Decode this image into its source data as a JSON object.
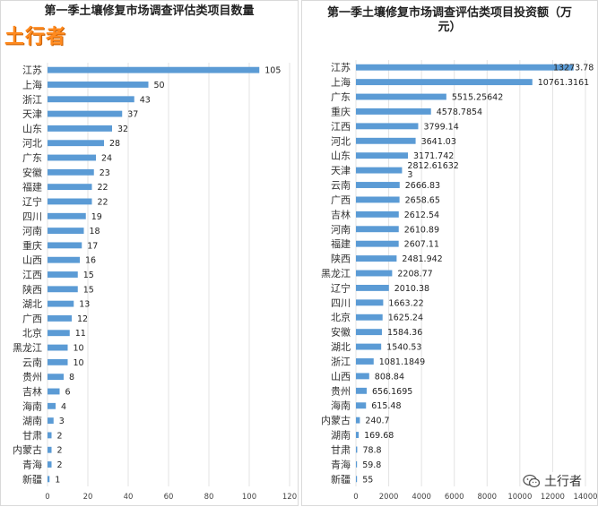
{
  "brand": {
    "logo_text": "土行者",
    "watermark_text": "土行者",
    "bar_color": "#5b9bd5"
  },
  "chart_data": [
    {
      "type": "bar",
      "orientation": "horizontal",
      "title": "第一季土壤修复市场调查评估类项目数量",
      "categories": [
        "江苏",
        "上海",
        "浙江",
        "天津",
        "山东",
        "河北",
        "广东",
        "安徽",
        "福建",
        "辽宁",
        "四川",
        "河南",
        "重庆",
        "山西",
        "江西",
        "陕西",
        "湖北",
        "广西",
        "北京",
        "黑龙江",
        "云南",
        "贵州",
        "吉林",
        "海南",
        "湖南",
        "甘肃",
        "内蒙古",
        "青海",
        "新疆"
      ],
      "values": [
        105,
        50,
        43,
        37,
        32,
        28,
        24,
        23,
        22,
        22,
        19,
        18,
        17,
        16,
        15,
        15,
        13,
        12,
        11,
        10,
        10,
        8,
        6,
        4,
        3,
        2,
        2,
        2,
        1
      ],
      "labels": [
        "105",
        "50",
        "43",
        "37",
        "32",
        "28",
        "24",
        "23",
        "22",
        "22",
        "19",
        "18",
        "17",
        "16",
        "15",
        "15",
        "13",
        "12",
        "11",
        "10",
        "10",
        "8",
        "6",
        "4",
        "3",
        "2",
        "2",
        "2",
        "1"
      ],
      "xlim": [
        0,
        120
      ],
      "xticks": [
        "0",
        "20",
        "40",
        "60",
        "80",
        "100",
        "120"
      ],
      "grid": true
    },
    {
      "type": "bar",
      "orientation": "horizontal",
      "title": "第一季土壤修复市场调查评估类项目投资额（万元）",
      "categories": [
        "江苏",
        "上海",
        "广东",
        "重庆",
        "江西",
        "河北",
        "山东",
        "天津",
        "云南",
        "广西",
        "吉林",
        "河南",
        "福建",
        "陕西",
        "黑龙江",
        "辽宁",
        "四川",
        "北京",
        "安徽",
        "湖北",
        "浙江",
        "山西",
        "贵州",
        "海南",
        "内蒙古",
        "湖南",
        "甘肃",
        "青海",
        "新疆"
      ],
      "values": [
        13273.78,
        10761.3161,
        5515.25642,
        4578.7854,
        3799.14,
        3641.03,
        3171.742,
        2812.616323,
        2666.83,
        2658.65,
        2612.54,
        2610.89,
        2607.11,
        2481.942,
        2208.77,
        2010.38,
        1663.22,
        1625.24,
        1584.36,
        1540.53,
        1081.1849,
        808.84,
        656.1695,
        615.48,
        240.7,
        169.68,
        78.8,
        59.8,
        55
      ],
      "labels": [
        "13273.78",
        "10761.3161",
        "5515.25642",
        "4578.7854",
        "3799.14",
        "3641.03",
        "3171.742",
        "2812.61632\n3",
        "2666.83",
        "2658.65",
        "2612.54",
        "2610.89",
        "2607.11",
        "2481.942",
        "2208.77",
        "2010.38",
        "1663.22",
        "1625.24",
        "1584.36",
        "1540.53",
        "1081.1849",
        "808.84",
        "656.1695",
        "615.48",
        "240.7",
        "169.68",
        "78.8",
        "59.8",
        "55"
      ],
      "xlim": [
        0,
        14000
      ],
      "xticks": [
        "0",
        "2000",
        "4000",
        "6000",
        "8000",
        "10000",
        "12000",
        "14000"
      ],
      "grid": true
    }
  ]
}
